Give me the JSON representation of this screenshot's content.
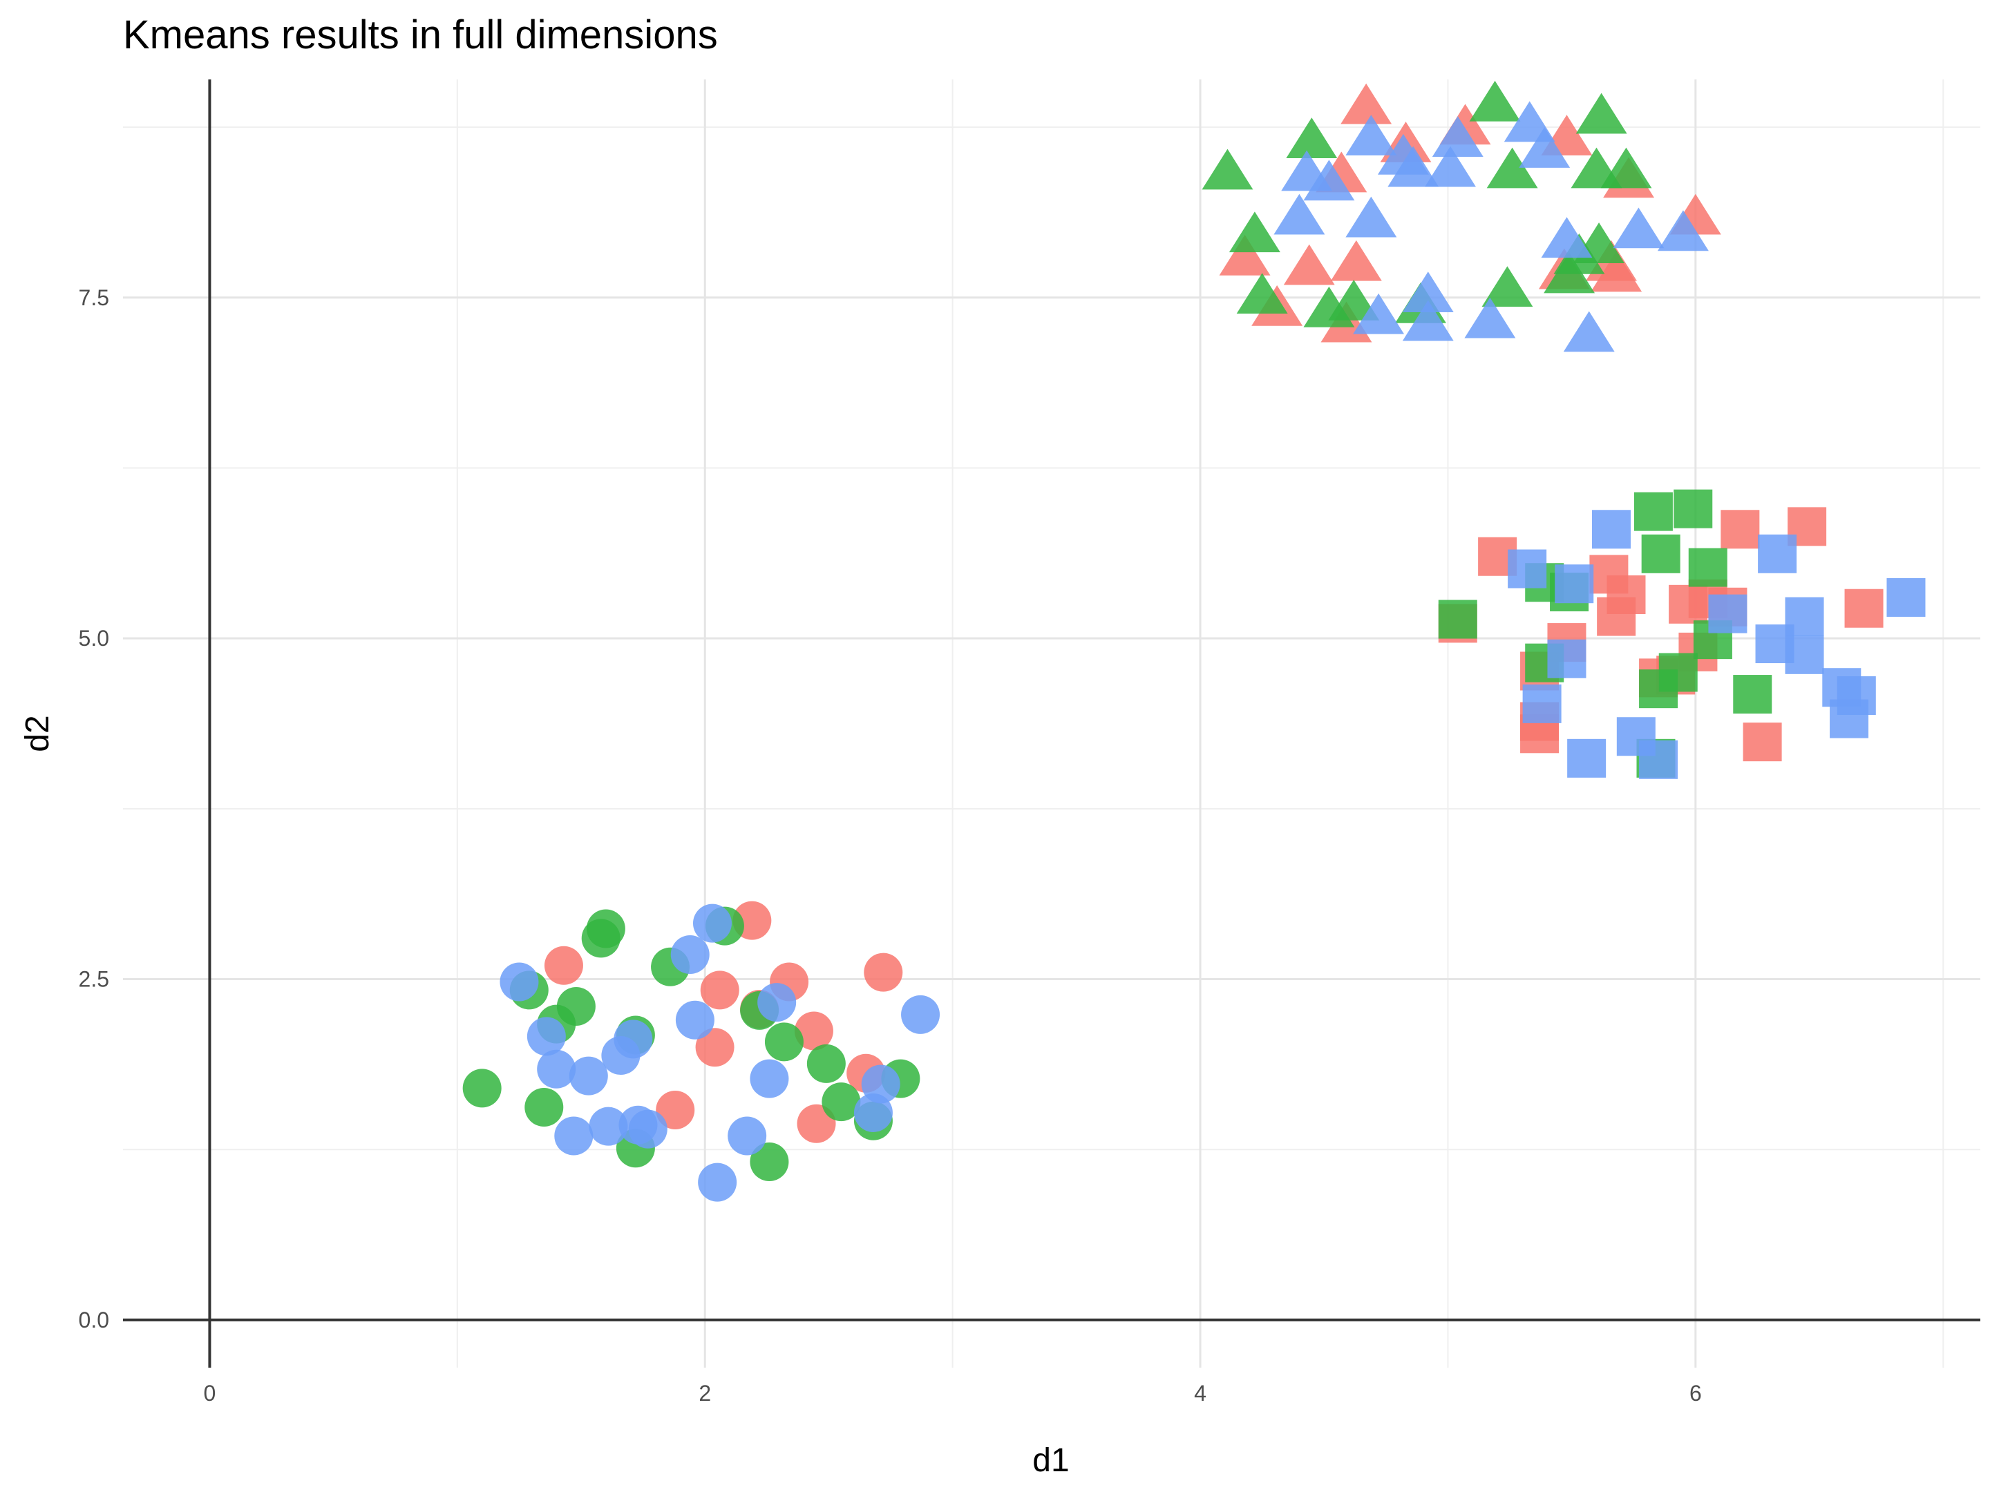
{
  "chart_data": {
    "type": "scatter",
    "title": "Kmeans results in full dimensions",
    "xlabel": "d1",
    "ylabel": "d2",
    "xlim": [
      -0.35,
      7.15
    ],
    "ylim": [
      -0.35,
      9.1
    ],
    "xticks": [
      0,
      2,
      4,
      6
    ],
    "yticks": [
      "0.0",
      "2.5",
      "5.0",
      "7.5"
    ],
    "grid": true,
    "legend": "none",
    "colors": {
      "red": "#F8766D",
      "green": "#33B540",
      "blue": "#6C9DF8"
    },
    "shape_groups": [
      {
        "shape": "circle",
        "points": [
          {
            "x": 1.43,
            "y": 2.6,
            "c": "red"
          },
          {
            "x": 2.19,
            "y": 2.93,
            "c": "red"
          },
          {
            "x": 2.06,
            "y": 2.42,
            "c": "red"
          },
          {
            "x": 2.34,
            "y": 2.48,
            "c": "red"
          },
          {
            "x": 2.72,
            "y": 2.55,
            "c": "red"
          },
          {
            "x": 2.44,
            "y": 2.12,
            "c": "red"
          },
          {
            "x": 2.22,
            "y": 2.28,
            "c": "red"
          },
          {
            "x": 2.04,
            "y": 2.0,
            "c": "red"
          },
          {
            "x": 2.65,
            "y": 1.81,
            "c": "red"
          },
          {
            "x": 1.88,
            "y": 1.54,
            "c": "red"
          },
          {
            "x": 2.45,
            "y": 1.44,
            "c": "red"
          },
          {
            "x": 1.6,
            "y": 2.87,
            "c": "green"
          },
          {
            "x": 1.58,
            "y": 2.8,
            "c": "green"
          },
          {
            "x": 2.08,
            "y": 2.89,
            "c": "green"
          },
          {
            "x": 1.29,
            "y": 2.42,
            "c": "green"
          },
          {
            "x": 1.48,
            "y": 2.3,
            "c": "green"
          },
          {
            "x": 1.86,
            "y": 2.59,
            "c": "green"
          },
          {
            "x": 1.4,
            "y": 2.17,
            "c": "green"
          },
          {
            "x": 1.72,
            "y": 2.09,
            "c": "green"
          },
          {
            "x": 2.32,
            "y": 2.04,
            "c": "green"
          },
          {
            "x": 2.49,
            "y": 1.88,
            "c": "green"
          },
          {
            "x": 2.79,
            "y": 1.77,
            "c": "green"
          },
          {
            "x": 1.1,
            "y": 1.7,
            "c": "green"
          },
          {
            "x": 2.55,
            "y": 1.6,
            "c": "green"
          },
          {
            "x": 1.35,
            "y": 1.56,
            "c": "green"
          },
          {
            "x": 2.68,
            "y": 1.46,
            "c": "green"
          },
          {
            "x": 1.72,
            "y": 1.26,
            "c": "green"
          },
          {
            "x": 2.26,
            "y": 1.16,
            "c": "green"
          },
          {
            "x": 2.22,
            "y": 2.27,
            "c": "green"
          },
          {
            "x": 2.03,
            "y": 2.91,
            "c": "blue"
          },
          {
            "x": 1.94,
            "y": 2.68,
            "c": "blue"
          },
          {
            "x": 1.25,
            "y": 2.48,
            "c": "blue"
          },
          {
            "x": 2.29,
            "y": 2.33,
            "c": "blue"
          },
          {
            "x": 2.87,
            "y": 2.24,
            "c": "blue"
          },
          {
            "x": 1.96,
            "y": 2.2,
            "c": "blue"
          },
          {
            "x": 1.36,
            "y": 2.08,
            "c": "blue"
          },
          {
            "x": 1.71,
            "y": 2.06,
            "c": "blue"
          },
          {
            "x": 1.66,
            "y": 1.94,
            "c": "blue"
          },
          {
            "x": 1.4,
            "y": 1.84,
            "c": "blue"
          },
          {
            "x": 1.53,
            "y": 1.79,
            "c": "blue"
          },
          {
            "x": 2.26,
            "y": 1.77,
            "c": "blue"
          },
          {
            "x": 2.71,
            "y": 1.73,
            "c": "blue"
          },
          {
            "x": 2.68,
            "y": 1.52,
            "c": "blue"
          },
          {
            "x": 1.61,
            "y": 1.42,
            "c": "blue"
          },
          {
            "x": 1.73,
            "y": 1.43,
            "c": "blue"
          },
          {
            "x": 1.77,
            "y": 1.4,
            "c": "blue"
          },
          {
            "x": 1.47,
            "y": 1.35,
            "c": "blue"
          },
          {
            "x": 2.17,
            "y": 1.35,
            "c": "blue"
          },
          {
            "x": 2.05,
            "y": 1.01,
            "c": "blue"
          }
        ]
      },
      {
        "shape": "square",
        "points": [
          {
            "x": 5.2,
            "y": 5.6,
            "c": "red"
          },
          {
            "x": 6.18,
            "y": 5.8,
            "c": "red"
          },
          {
            "x": 6.45,
            "y": 5.82,
            "c": "red"
          },
          {
            "x": 5.65,
            "y": 5.47,
            "c": "red"
          },
          {
            "x": 5.72,
            "y": 5.32,
            "c": "red"
          },
          {
            "x": 5.97,
            "y": 5.25,
            "c": "red"
          },
          {
            "x": 6.05,
            "y": 5.29,
            "c": "red"
          },
          {
            "x": 6.13,
            "y": 5.23,
            "c": "red"
          },
          {
            "x": 6.68,
            "y": 5.22,
            "c": "red"
          },
          {
            "x": 5.68,
            "y": 5.16,
            "c": "red"
          },
          {
            "x": 5.04,
            "y": 5.11,
            "c": "red"
          },
          {
            "x": 5.48,
            "y": 4.97,
            "c": "red"
          },
          {
            "x": 6.01,
            "y": 4.9,
            "c": "red"
          },
          {
            "x": 5.92,
            "y": 4.73,
            "c": "red"
          },
          {
            "x": 5.85,
            "y": 4.71,
            "c": "red"
          },
          {
            "x": 5.37,
            "y": 4.76,
            "c": "red"
          },
          {
            "x": 5.37,
            "y": 4.39,
            "c": "red"
          },
          {
            "x": 5.37,
            "y": 4.3,
            "c": "red"
          },
          {
            "x": 6.27,
            "y": 4.24,
            "c": "red"
          },
          {
            "x": 5.83,
            "y": 5.93,
            "c": "green"
          },
          {
            "x": 5.99,
            "y": 5.95,
            "c": "green"
          },
          {
            "x": 5.86,
            "y": 5.62,
            "c": "green"
          },
          {
            "x": 6.05,
            "y": 5.52,
            "c": "green"
          },
          {
            "x": 5.39,
            "y": 5.41,
            "c": "green"
          },
          {
            "x": 5.49,
            "y": 5.34,
            "c": "green"
          },
          {
            "x": 5.04,
            "y": 5.14,
            "c": "green"
          },
          {
            "x": 6.07,
            "y": 4.99,
            "c": "green"
          },
          {
            "x": 5.39,
            "y": 4.82,
            "c": "green"
          },
          {
            "x": 5.93,
            "y": 4.75,
            "c": "green"
          },
          {
            "x": 5.85,
            "y": 4.63,
            "c": "green"
          },
          {
            "x": 6.23,
            "y": 4.59,
            "c": "green"
          },
          {
            "x": 5.84,
            "y": 4.12,
            "c": "green"
          },
          {
            "x": 5.66,
            "y": 5.8,
            "c": "blue"
          },
          {
            "x": 6.33,
            "y": 5.62,
            "c": "blue"
          },
          {
            "x": 5.32,
            "y": 5.51,
            "c": "blue"
          },
          {
            "x": 5.51,
            "y": 5.4,
            "c": "blue"
          },
          {
            "x": 6.85,
            "y": 5.3,
            "c": "blue"
          },
          {
            "x": 6.13,
            "y": 5.18,
            "c": "blue"
          },
          {
            "x": 6.44,
            "y": 5.16,
            "c": "blue"
          },
          {
            "x": 6.32,
            "y": 4.96,
            "c": "blue"
          },
          {
            "x": 6.44,
            "y": 4.88,
            "c": "blue"
          },
          {
            "x": 5.48,
            "y": 4.85,
            "c": "blue"
          },
          {
            "x": 6.59,
            "y": 4.64,
            "c": "blue"
          },
          {
            "x": 6.65,
            "y": 4.58,
            "c": "blue"
          },
          {
            "x": 5.38,
            "y": 4.52,
            "c": "blue"
          },
          {
            "x": 6.62,
            "y": 4.41,
            "c": "blue"
          },
          {
            "x": 5.76,
            "y": 4.28,
            "c": "blue"
          },
          {
            "x": 5.56,
            "y": 4.12,
            "c": "blue"
          },
          {
            "x": 5.85,
            "y": 4.11,
            "c": "blue"
          }
        ]
      },
      {
        "shape": "triangle",
        "points": [
          {
            "x": 4.67,
            "y": 8.9,
            "c": "red"
          },
          {
            "x": 4.83,
            "y": 8.62,
            "c": "red"
          },
          {
            "x": 5.07,
            "y": 8.75,
            "c": "red"
          },
          {
            "x": 5.48,
            "y": 8.67,
            "c": "red"
          },
          {
            "x": 4.57,
            "y": 8.4,
            "c": "red"
          },
          {
            "x": 5.73,
            "y": 8.36,
            "c": "red"
          },
          {
            "x": 6.0,
            "y": 8.09,
            "c": "red"
          },
          {
            "x": 4.18,
            "y": 7.79,
            "c": "red"
          },
          {
            "x": 4.44,
            "y": 7.72,
            "c": "red"
          },
          {
            "x": 4.63,
            "y": 7.75,
            "c": "red"
          },
          {
            "x": 5.47,
            "y": 7.69,
            "c": "red"
          },
          {
            "x": 5.66,
            "y": 7.75,
            "c": "red"
          },
          {
            "x": 5.68,
            "y": 7.67,
            "c": "red"
          },
          {
            "x": 4.31,
            "y": 7.42,
            "c": "red"
          },
          {
            "x": 4.59,
            "y": 7.3,
            "c": "red"
          },
          {
            "x": 5.19,
            "y": 8.92,
            "c": "green"
          },
          {
            "x": 5.62,
            "y": 8.83,
            "c": "green"
          },
          {
            "x": 4.45,
            "y": 8.65,
            "c": "green"
          },
          {
            "x": 4.11,
            "y": 8.42,
            "c": "green"
          },
          {
            "x": 5.26,
            "y": 8.43,
            "c": "green"
          },
          {
            "x": 5.6,
            "y": 8.43,
            "c": "green"
          },
          {
            "x": 5.72,
            "y": 8.43,
            "c": "green"
          },
          {
            "x": 4.22,
            "y": 7.96,
            "c": "green"
          },
          {
            "x": 5.61,
            "y": 7.88,
            "c": "green"
          },
          {
            "x": 5.53,
            "y": 7.8,
            "c": "green"
          },
          {
            "x": 5.24,
            "y": 7.56,
            "c": "green"
          },
          {
            "x": 4.62,
            "y": 7.46,
            "c": "green"
          },
          {
            "x": 4.25,
            "y": 7.51,
            "c": "green"
          },
          {
            "x": 4.52,
            "y": 7.41,
            "c": "green"
          },
          {
            "x": 4.89,
            "y": 7.44,
            "c": "green"
          },
          {
            "x": 5.49,
            "y": 7.66,
            "c": "green"
          },
          {
            "x": 5.33,
            "y": 8.77,
            "c": "blue"
          },
          {
            "x": 4.69,
            "y": 8.67,
            "c": "blue"
          },
          {
            "x": 5.04,
            "y": 8.66,
            "c": "blue"
          },
          {
            "x": 5.39,
            "y": 8.58,
            "c": "blue"
          },
          {
            "x": 4.82,
            "y": 8.53,
            "c": "blue"
          },
          {
            "x": 4.86,
            "y": 8.44,
            "c": "blue"
          },
          {
            "x": 5.01,
            "y": 8.44,
            "c": "blue"
          },
          {
            "x": 4.43,
            "y": 8.41,
            "c": "blue"
          },
          {
            "x": 4.52,
            "y": 8.34,
            "c": "blue"
          },
          {
            "x": 4.4,
            "y": 8.09,
            "c": "blue"
          },
          {
            "x": 4.69,
            "y": 8.07,
            "c": "blue"
          },
          {
            "x": 5.77,
            "y": 7.99,
            "c": "blue"
          },
          {
            "x": 5.95,
            "y": 7.97,
            "c": "blue"
          },
          {
            "x": 5.48,
            "y": 7.92,
            "c": "blue"
          },
          {
            "x": 4.92,
            "y": 7.52,
            "c": "blue"
          },
          {
            "x": 4.72,
            "y": 7.36,
            "c": "blue"
          },
          {
            "x": 4.92,
            "y": 7.31,
            "c": "blue"
          },
          {
            "x": 5.17,
            "y": 7.33,
            "c": "blue"
          },
          {
            "x": 5.57,
            "y": 7.23,
            "c": "blue"
          }
        ]
      }
    ]
  }
}
